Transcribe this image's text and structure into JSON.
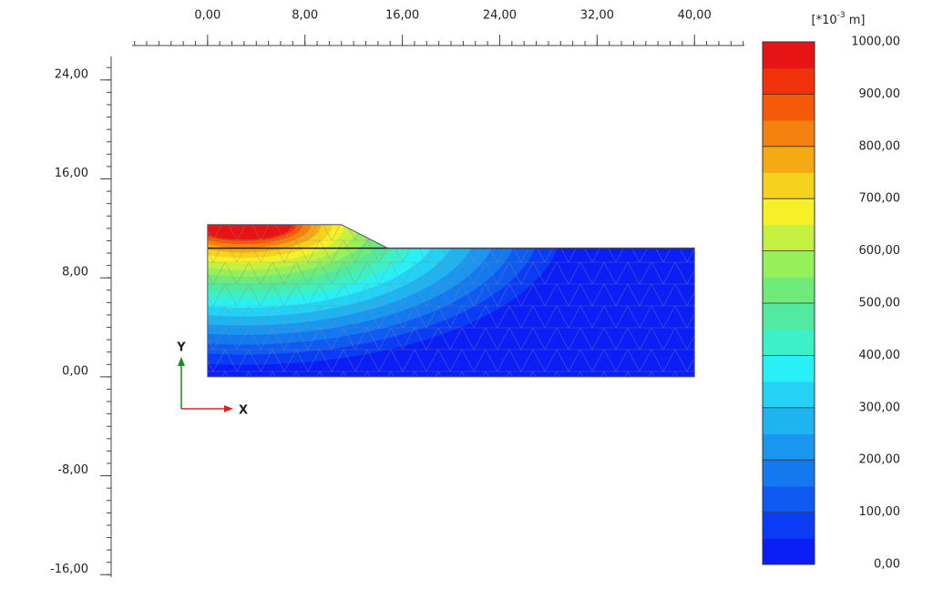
{
  "chart_data": {
    "type": "contour",
    "x_label": "X",
    "y_label": "Y",
    "xlim": [
      -6.2,
      44.1
    ],
    "xticks": [
      {
        "value": 0,
        "label": "0,00"
      },
      {
        "value": 8,
        "label": "8,00"
      },
      {
        "value": 16,
        "label": "16,00"
      },
      {
        "value": 24,
        "label": "24,00"
      },
      {
        "value": 32,
        "label": "32,00"
      },
      {
        "value": 40,
        "label": "40,00"
      }
    ],
    "ylim": [
      -16.2,
      25.9
    ],
    "yticks": [
      {
        "value": 24,
        "label": "24,00"
      },
      {
        "value": 16,
        "label": "16,00"
      },
      {
        "value": 8,
        "label": "8,00"
      },
      {
        "value": 0,
        "label": "0,00"
      },
      {
        "value": -8,
        "label": "-8,00"
      },
      {
        "value": -16,
        "label": "-16,00"
      }
    ],
    "colorbar": {
      "unit": {
        "prefix": "[*10",
        "exponent": "-3",
        "suffix": " m]"
      },
      "lim": [
        0,
        1000
      ],
      "ticks": [
        {
          "value": 0,
          "label": "0,00"
        },
        {
          "value": 100,
          "label": "100,00"
        },
        {
          "value": 200,
          "label": "200,00"
        },
        {
          "value": 300,
          "label": "300,00"
        },
        {
          "value": 400,
          "label": "400,00"
        },
        {
          "value": 500,
          "label": "500,00"
        },
        {
          "value": 600,
          "label": "600,00"
        },
        {
          "value": 700,
          "label": "700,00"
        },
        {
          "value": 800,
          "label": "800,00"
        },
        {
          "value": 900,
          "label": "900,00"
        },
        {
          "value": 1000,
          "label": "1000,00"
        }
      ],
      "colors": [
        "#0a1ef5",
        "#0a3cf5",
        "#0f5af0",
        "#1478f0",
        "#1a96f0",
        "#1fb4f0",
        "#23d2f5",
        "#28f0f5",
        "#3cf0c8",
        "#50eba0",
        "#6eeb78",
        "#96f05a",
        "#c3f041",
        "#f5f028",
        "#f5d21e",
        "#f5aa14",
        "#f5820f",
        "#f55a0a",
        "#f0320a",
        "#e61414"
      ]
    }
  }
}
